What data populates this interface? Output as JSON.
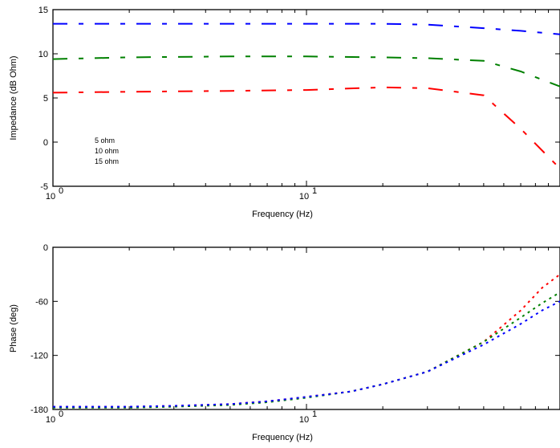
{
  "chart_data": [
    {
      "type": "line",
      "xlabel": "Frequency (Hz)",
      "ylabel": "Impedance (dB Ohm)",
      "xscale": "log",
      "xlim": [
        1,
        100
      ],
      "ylim": [
        -5,
        15
      ],
      "yticks": [
        -5,
        0,
        5,
        10,
        15
      ],
      "xtick_labels": [
        {
          "base": "10",
          "exp": "0"
        },
        {
          "base": "10",
          "exp": "1"
        }
      ],
      "grid": false,
      "legend": {
        "placement": "lower-left",
        "entries": [
          "5 ohm",
          "10 ohm",
          "15 ohm"
        ]
      },
      "series": [
        {
          "name": "5 ohm",
          "color": "#ff0000",
          "x": [
            1,
            2,
            5,
            10,
            20,
            30,
            50,
            70,
            100
          ],
          "y": [
            5.6,
            5.7,
            5.8,
            5.9,
            6.2,
            6.1,
            5.3,
            1.5,
            -3.0
          ]
        },
        {
          "name": "10 ohm",
          "color": "#008000",
          "x": [
            1,
            2,
            5,
            10,
            20,
            30,
            50,
            70,
            100
          ],
          "y": [
            9.4,
            9.6,
            9.7,
            9.7,
            9.6,
            9.5,
            9.2,
            8.0,
            6.3
          ]
        },
        {
          "name": "15 ohm",
          "color": "#0000ff",
          "x": [
            1,
            2,
            5,
            10,
            20,
            30,
            50,
            70,
            100
          ],
          "y": [
            13.4,
            13.4,
            13.4,
            13.4,
            13.4,
            13.3,
            12.9,
            12.6,
            12.2
          ]
        }
      ]
    },
    {
      "type": "line",
      "xlabel": "Frequency (Hz)",
      "ylabel": "Phase (deg)",
      "xscale": "log",
      "xlim": [
        1,
        100
      ],
      "ylim": [
        -180,
        0
      ],
      "yticks": [
        0,
        -60,
        -120,
        -180
      ],
      "xtick_labels": [
        {
          "base": "10",
          "exp": "0"
        },
        {
          "base": "10",
          "exp": "1"
        }
      ],
      "grid": false,
      "series": [
        {
          "name": "5 ohm",
          "color": "#ff0000",
          "x": [
            1,
            2,
            3,
            5,
            7,
            10,
            15,
            20,
            30,
            50,
            70,
            85,
            100
          ],
          "y": [
            -177,
            -177,
            -176,
            -174,
            -171,
            -166,
            -160,
            -152,
            -138,
            -105,
            -70,
            -45,
            -30
          ]
        },
        {
          "name": "10 ohm",
          "color": "#008000",
          "x": [
            1,
            2,
            3,
            5,
            7,
            10,
            15,
            20,
            30,
            50,
            70,
            85,
            100
          ],
          "y": [
            -178,
            -178,
            -177,
            -175,
            -172,
            -167,
            -160,
            -152,
            -138,
            -105,
            -78,
            -62,
            -50
          ]
        },
        {
          "name": "15 ohm",
          "color": "#0000ff",
          "x": [
            1,
            2,
            3,
            5,
            7,
            10,
            15,
            20,
            30,
            50,
            70,
            85,
            100
          ],
          "y": [
            -177,
            -177,
            -176,
            -174,
            -171,
            -166,
            -160,
            -152,
            -138,
            -108,
            -85,
            -70,
            -60
          ]
        }
      ]
    }
  ]
}
